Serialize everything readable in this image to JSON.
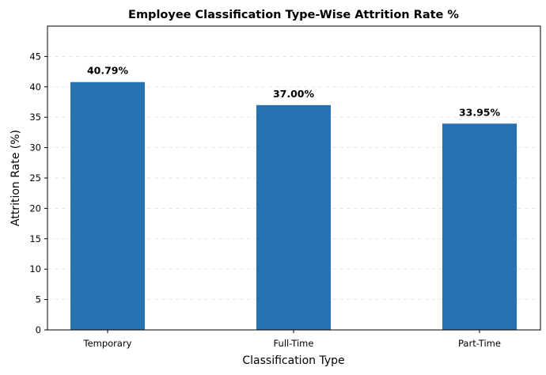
{
  "chart_data": {
    "type": "bar",
    "title": "Employee Classification Type-Wise Attrition Rate %",
    "xlabel": "Classification Type",
    "ylabel": "Attrition Rate (%)",
    "categories": [
      "Temporary",
      "Full-Time",
      "Part-Time"
    ],
    "values": [
      40.79,
      37.0,
      33.95
    ],
    "data_labels": [
      "40.79%",
      "37.00%",
      "33.95%"
    ],
    "ylim": [
      0,
      50
    ],
    "yticks": [
      0,
      5,
      10,
      15,
      20,
      25,
      30,
      35,
      40,
      45
    ],
    "grid": true,
    "legend": "none",
    "bar_color": "#2872b1"
  }
}
